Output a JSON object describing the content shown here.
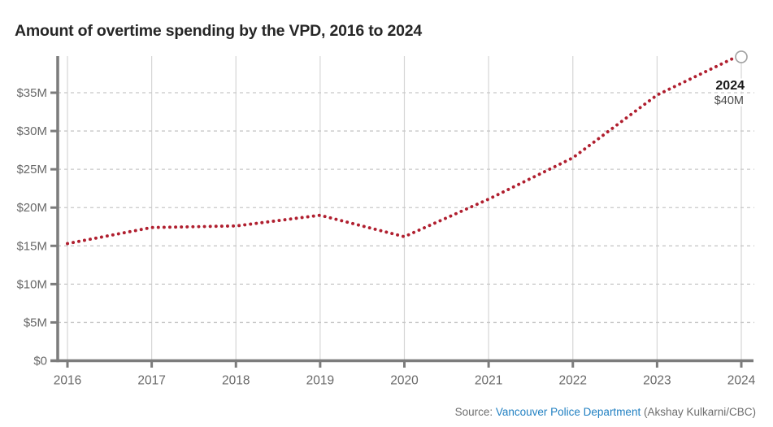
{
  "title": "Amount of overtime spending by the VPD, 2016 to 2024",
  "annotation": {
    "label": "2024",
    "value": "$40M"
  },
  "source": {
    "prefix": "Source: ",
    "link_text": "Vancouver Police Department",
    "suffix": " (Akshay Kulkarni/CBC)"
  },
  "colors": {
    "line": "#b01f2f",
    "axis": "#7c7c7c",
    "grid_vertical": "#d6d6d6",
    "grid_dashed": "#c8c8c8",
    "tick_label": "#696969",
    "title_text": "#262626",
    "annotation_year": "#1a1a1a",
    "annotation_value": "#4a4a4a",
    "source_text": "#6d6d6d",
    "link": "#2180c2",
    "endpoint_circle": "#a0a0a0",
    "background": "#ffffff"
  },
  "chart_data": {
    "type": "line",
    "line_style": "dotted",
    "title": "Amount of overtime spending by the VPD, 2016 to 2024",
    "x": [
      2016,
      2017,
      2018,
      2019,
      2020,
      2021,
      2022,
      2023,
      2024
    ],
    "x_tick_labels": [
      "2016",
      "2017",
      "2018",
      "2019",
      "2020",
      "2021",
      "2022",
      "2023",
      "2024"
    ],
    "values": [
      15.3,
      17.4,
      17.6,
      19.0,
      16.2,
      21.1,
      26.5,
      34.7,
      40.0
    ],
    "values_unit": "$M",
    "y_tick_values": [
      0,
      5,
      10,
      15,
      20,
      25,
      30,
      35
    ],
    "y_tick_labels": [
      "$0",
      "$5M",
      "$10M",
      "$15M",
      "$20M",
      "$25M",
      "$30M",
      "$35M"
    ],
    "ylim": [
      0,
      40
    ],
    "xlabel": "",
    "ylabel": "",
    "grid": true,
    "legend": false,
    "end_marker": "open-circle",
    "end_annotation": {
      "label": "2024",
      "value": "$40M"
    }
  }
}
